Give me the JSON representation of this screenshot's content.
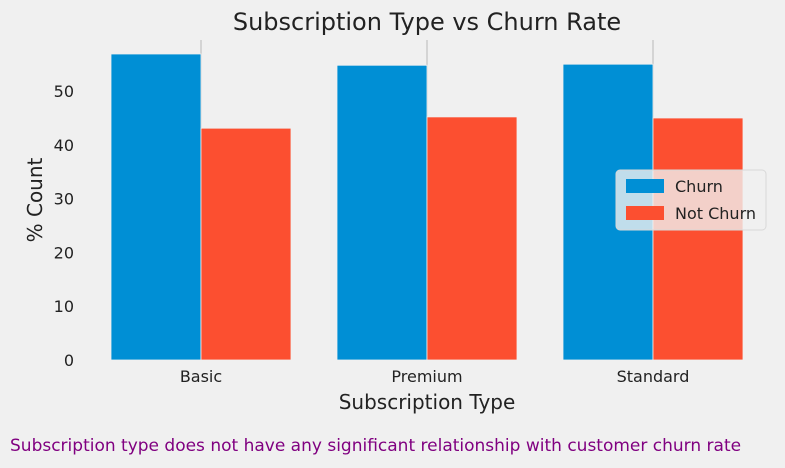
{
  "chart_data": {
    "type": "bar",
    "title": "Subscription Type vs Churn Rate",
    "xlabel": "Subscription Type",
    "ylabel": "% Count",
    "categories": [
      "Basic",
      "Premium",
      "Standard"
    ],
    "series": [
      {
        "name": "Churn",
        "color": "#008fd5",
        "values": [
          56.9,
          54.8,
          55.0
        ]
      },
      {
        "name": "Not Churn",
        "color": "#fc4f30",
        "values": [
          43.1,
          45.2,
          45.0
        ]
      }
    ],
    "ylim": [
      0,
      59.5
    ],
    "yticks": [
      0,
      10,
      20,
      30,
      40,
      50
    ],
    "grid": "vertical-only",
    "legend": "center-right"
  },
  "caption": "Subscription type does not have any significant relationship with customer churn rate"
}
